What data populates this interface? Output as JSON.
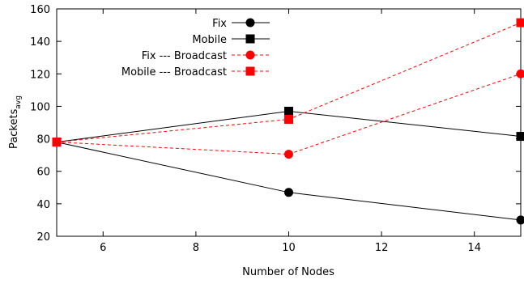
{
  "chart_data": {
    "type": "line",
    "xlabel": "Number of Nodes",
    "ylabel": "Packets",
    "ylabel_subscript": "avg",
    "xlim": [
      5,
      15
    ],
    "ylim": [
      20,
      160
    ],
    "xticks": [
      6,
      8,
      10,
      12,
      14
    ],
    "yticks": [
      20,
      40,
      60,
      80,
      100,
      120,
      140,
      160
    ],
    "grid": false,
    "legend_position": "top-center",
    "series": [
      {
        "name": "Fix",
        "x": [
          5,
          10,
          15
        ],
        "y": [
          78,
          47,
          30
        ],
        "color": "#000000",
        "dash": "solid",
        "marker": "circle"
      },
      {
        "name": "Mobile",
        "x": [
          5,
          10,
          15
        ],
        "y": [
          78,
          97,
          81.5
        ],
        "color": "#000000",
        "dash": "solid",
        "marker": "square"
      },
      {
        "name": "Fix --- Broadcast",
        "x": [
          5,
          10,
          15
        ],
        "y": [
          78,
          70.5,
          120
        ],
        "color": "#ff0000",
        "dash": "dashed",
        "marker": "circle"
      },
      {
        "name": "Mobile --- Broadcast",
        "x": [
          5,
          10,
          15
        ],
        "y": [
          78,
          92,
          151.5
        ],
        "color": "#ff0000",
        "dash": "dashed",
        "marker": "square"
      }
    ]
  }
}
